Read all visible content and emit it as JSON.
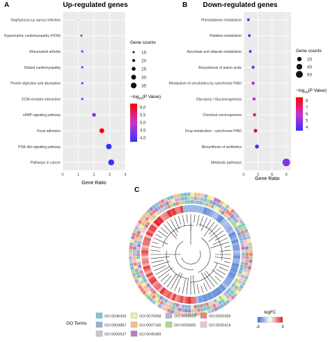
{
  "chart_data": [
    {
      "type": "scatter",
      "panel_label": "A",
      "title": "Up-regulated genes",
      "xlabel": "Gene Ratio",
      "xlim": [
        0,
        4
      ],
      "x_ticks": [
        "0",
        "1",
        "2",
        "3",
        "4"
      ],
      "categories": [
        "Staphylococcus aureus infection",
        "Hypertrophic cardiomyopathy (HCM)",
        "Rheumatoid arthritis",
        "Dilated cardiomyopathy",
        "Protein digestion and absorption",
        "ECM-receptor interaction",
        "cAMP signaling pathway",
        "Focal adhesion",
        "PI3K-Akt signaling pathway",
        "Pathways in cancer"
      ],
      "gene_ratio": [
        1.0,
        1.2,
        1.25,
        1.25,
        1.25,
        1.25,
        2.0,
        2.5,
        2.95,
        3.1
      ],
      "gene_counts": [
        8,
        15,
        16,
        16,
        16,
        16,
        24,
        30,
        34,
        36
      ],
      "neg_log10_p": [
        4.0,
        4.5,
        4.5,
        4.6,
        4.6,
        4.6,
        4.5,
        6.0,
        4.0,
        4.0
      ],
      "size_legend": {
        "title": "Gene counts",
        "values": [
          "15",
          "20",
          "25",
          "30",
          "35"
        ]
      },
      "color_legend": {
        "title_prefix": "−log",
        "title_sub": "10",
        "title_suffix": "(P Value)",
        "ticks": [
          "6.0",
          "5.5",
          "5.0",
          "4.5",
          "4.0"
        ],
        "low_color": "#3333ff",
        "mid_color": "#cc33cc",
        "high_color": "#ff0000"
      }
    },
    {
      "type": "scatter",
      "panel_label": "B",
      "title": "Down-regulated genes",
      "xlabel": "Gene Ratio",
      "xlim": [
        0,
        10
      ],
      "x_ticks": [
        "0",
        "3",
        "6",
        "9"
      ],
      "categories": [
        "Phenylalanine metabolism",
        "Histidine metabolism",
        "Ascorbate and aldarate metabolism",
        "Biosynthesis of amino acids",
        "Metabolism of xenobiotics by cytochrome P450",
        "Glycolysis / Gluconeogenesis",
        "Chemical carcinogenesis",
        "Drug metabolism - cytochrome P450",
        "Biosynthesis of antibiotics",
        "Metabolic pathways"
      ],
      "gene_ratio": [
        1.0,
        1.2,
        1.4,
        2.0,
        2.0,
        2.2,
        2.3,
        2.5,
        2.8,
        9.0
      ],
      "gene_counts": [
        5,
        5,
        6,
        8,
        8,
        9,
        10,
        12,
        15,
        75
      ],
      "neg_log10_p": [
        4.0,
        4.2,
        4.5,
        5.0,
        5.5,
        6.0,
        6.5,
        8.0,
        4.0,
        5.0
      ],
      "size_legend": {
        "title": "Gene counts",
        "values": [
          "20",
          "40",
          "60"
        ]
      },
      "color_legend": {
        "title_prefix": "−log",
        "title_sub": "10",
        "title_suffix": "(P Value)",
        "ticks": [
          "8",
          "7",
          "6",
          "5",
          "4"
        ],
        "low_color": "#3333ff",
        "mid_color": "#cc33cc",
        "high_color": "#ff0000"
      }
    },
    {
      "type": "heatmap",
      "panel_label": "C",
      "subtype": "circular dendrogram with GO term ring",
      "legend_group_label": "GO Terms",
      "go_terms": [
        {
          "name": "GO:0046426",
          "color": "#7ec8c8"
        },
        {
          "name": "GO:0070098",
          "color": "#f5f0a0"
        },
        {
          "name": "GO:0042613",
          "color": "#b8b4d8"
        },
        {
          "name": "GO:0005589",
          "color": "#f08080"
        },
        {
          "name": "GO:0004867",
          "color": "#8ab4d8"
        },
        {
          "name": "GO:0007166",
          "color": "#f5c080"
        },
        {
          "name": "GO:0005865",
          "color": "#b0d890"
        },
        {
          "name": "GO:0030414",
          "color": "#f5c0d8"
        },
        {
          "name": "GO:0006937",
          "color": "#c8c8c8"
        },
        {
          "name": "GO:0045499",
          "color": "#b080c0"
        }
      ],
      "logfc_legend": {
        "title": "logFC",
        "min_label": "-3",
        "max_label": "3",
        "low_color": "#3b6fd0",
        "mid_color": "#ffffff",
        "high_color": "#e02020"
      }
    }
  ]
}
